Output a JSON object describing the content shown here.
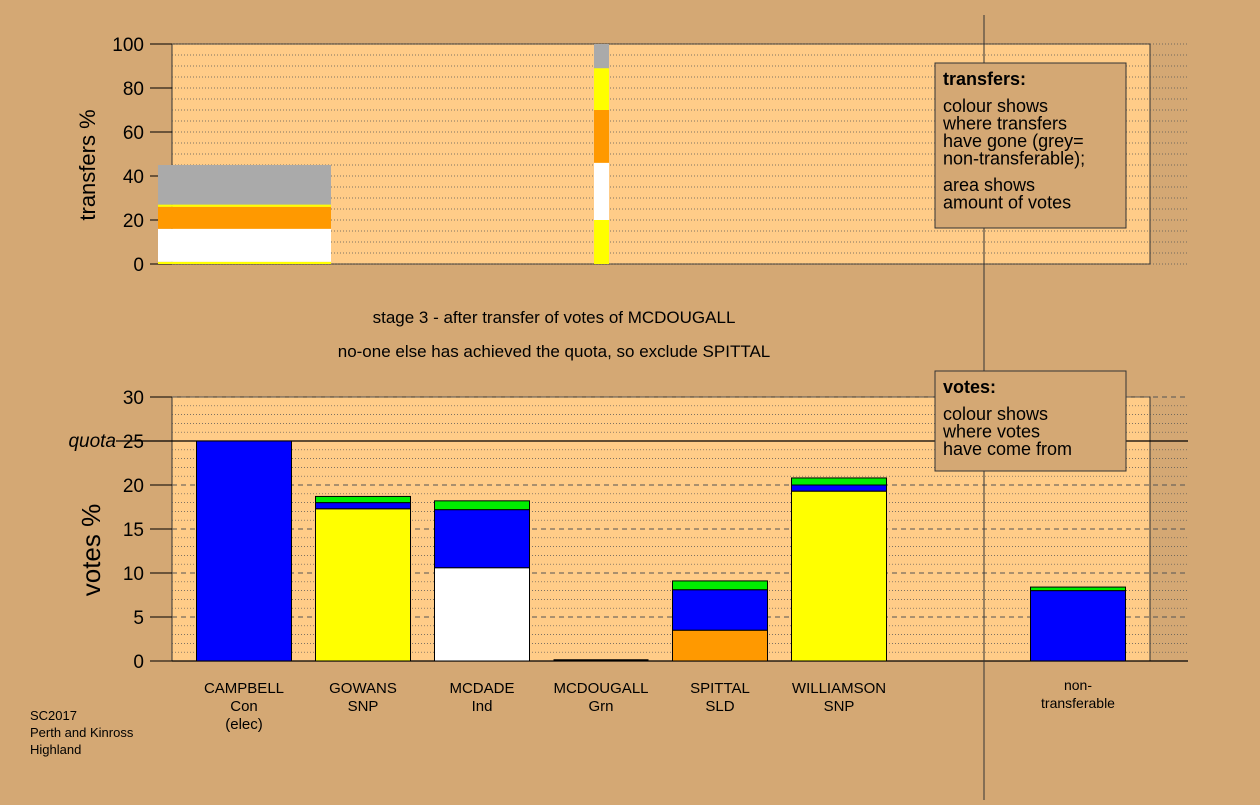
{
  "chart_data": [
    {
      "type": "bar",
      "name": "transfers",
      "ylabel": "transfers %",
      "ylim": [
        0,
        100
      ],
      "yticks": [
        0,
        20,
        40,
        60,
        80,
        100
      ],
      "categories": [
        "CAMPBELL",
        "MCDOUGALL"
      ],
      "stacks": [
        {
          "category": "CAMPBELL",
          "segments": [
            {
              "color": "#ffff00",
              "from": 0,
              "to": 1
            },
            {
              "color": "#ffffff",
              "from": 1,
              "to": 16
            },
            {
              "color": "#ff9900",
              "from": 16,
              "to": 26
            },
            {
              "color": "#ffff00",
              "from": 26,
              "to": 27
            },
            {
              "color": "#aaaaaa",
              "from": 27,
              "to": 45
            }
          ]
        },
        {
          "category": "MCDOUGALL",
          "segments": [
            {
              "color": "#ffff00",
              "from": 0,
              "to": 20
            },
            {
              "color": "#ffffff",
              "from": 20,
              "to": 46
            },
            {
              "color": "#ff9900",
              "from": 46,
              "to": 70
            },
            {
              "color": "#ffff00",
              "from": 70,
              "to": 89
            },
            {
              "color": "#aaaaaa",
              "from": 89,
              "to": 100
            }
          ]
        }
      ],
      "legend": {
        "title": "transfers:",
        "lines1": [
          "colour shows",
          "where transfers",
          "have gone (grey=",
          "non-transferable);"
        ],
        "lines2": [
          "area shows",
          "amount of votes"
        ]
      }
    },
    {
      "type": "bar",
      "name": "votes",
      "ylabel": "votes %",
      "ylim": [
        0,
        30
      ],
      "yticks": [
        0,
        5,
        10,
        15,
        20,
        25,
        30
      ],
      "quota": 25,
      "quota_label": "quota",
      "categories": [
        {
          "name": "CAMPBELL",
          "party": "Con",
          "note": "(elec)"
        },
        {
          "name": "GOWANS",
          "party": "SNP",
          "note": ""
        },
        {
          "name": "MCDADE",
          "party": "Ind",
          "note": ""
        },
        {
          "name": "MCDOUGALL",
          "party": "Grn",
          "note": ""
        },
        {
          "name": "SPITTAL",
          "party": "SLD",
          "note": ""
        },
        {
          "name": "WILLIAMSON",
          "party": "SNP",
          "note": ""
        },
        {
          "name": "non-",
          "party": "transferable",
          "note": ""
        }
      ],
      "stacks": [
        [
          {
            "color": "#0000ff",
            "from": 0,
            "to": 25
          }
        ],
        [
          {
            "color": "#ffff00",
            "from": 0,
            "to": 17.3
          },
          {
            "color": "#0000ff",
            "from": 17.3,
            "to": 18
          },
          {
            "color": "#00ee00",
            "from": 18,
            "to": 18.7
          }
        ],
        [
          {
            "color": "#ffffff",
            "from": 0,
            "to": 10.6
          },
          {
            "color": "#0000ff",
            "from": 10.6,
            "to": 17.2
          },
          {
            "color": "#00ee00",
            "from": 17.2,
            "to": 18.2
          }
        ],
        [],
        [
          {
            "color": "#ff9900",
            "from": 0,
            "to": 3.5
          },
          {
            "color": "#0000ff",
            "from": 3.5,
            "to": 8.1
          },
          {
            "color": "#00ee00",
            "from": 8.1,
            "to": 9.1
          }
        ],
        [
          {
            "color": "#ffff00",
            "from": 0,
            "to": 19.3
          },
          {
            "color": "#0000ff",
            "from": 19.3,
            "to": 20
          },
          {
            "color": "#00ee00",
            "from": 20,
            "to": 20.8
          }
        ],
        [
          {
            "color": "#0000ff",
            "from": 0,
            "to": 8
          },
          {
            "color": "#00ee00",
            "from": 8,
            "to": 8.4
          }
        ]
      ],
      "legend": {
        "title": "votes:",
        "lines1": [
          "colour shows",
          "where votes",
          "have come from"
        ]
      }
    }
  ],
  "stage_text": "stage 3 - after transfer of votes of MCDOUGALL",
  "status_text": "no-one else has achieved the quota, so exclude SPITTAL",
  "footer": [
    "SC2017",
    "Perth and Kinross",
    "Highland"
  ],
  "colors": {
    "background": "#d4a874",
    "plot_fill": "#ffcc88",
    "gridline": "#555555"
  }
}
